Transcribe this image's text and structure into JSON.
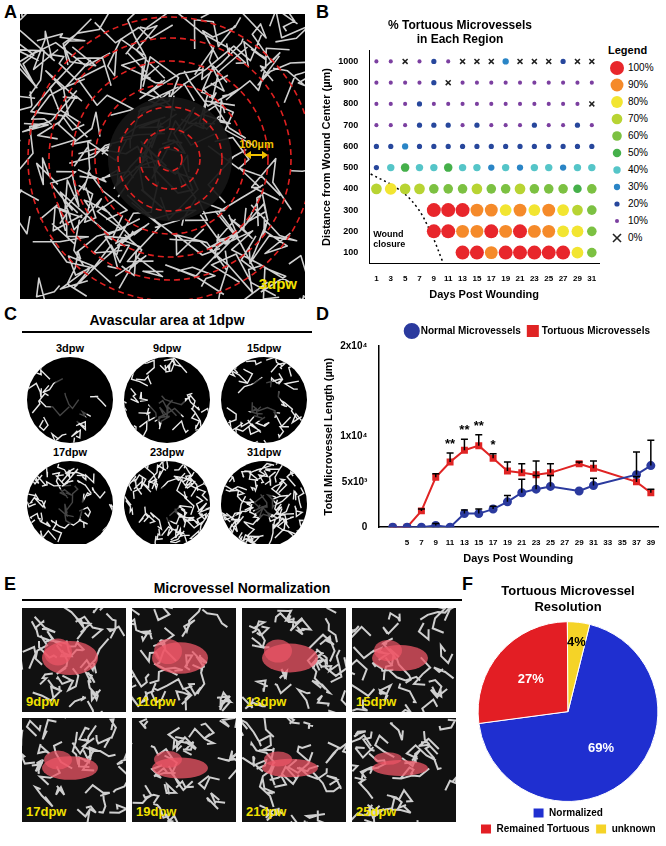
{
  "chart_data": [
    {
      "panel": "B",
      "type": "bubble",
      "title": [
        "% Tortuous Microvessels",
        "in Each Region"
      ],
      "x_label": "Days Post Wounding",
      "y_label": "Distance from Wound Center (µm)",
      "x": [
        1,
        3,
        5,
        7,
        9,
        11,
        13,
        15,
        17,
        19,
        21,
        23,
        25,
        27,
        29,
        31
      ],
      "y": [
        100,
        200,
        300,
        400,
        500,
        600,
        700,
        800,
        900,
        1000
      ],
      "cells": [
        [
          null,
          null,
          null,
          null,
          null,
          null,
          100,
          100,
          90,
          100,
          100,
          100,
          100,
          100,
          80,
          60
        ],
        [
          null,
          null,
          null,
          null,
          100,
          100,
          90,
          90,
          100,
          90,
          100,
          90,
          90,
          80,
          80,
          60
        ],
        [
          null,
          null,
          null,
          null,
          100,
          100,
          100,
          90,
          90,
          80,
          90,
          80,
          90,
          80,
          70,
          60
        ],
        [
          70,
          80,
          70,
          70,
          60,
          60,
          60,
          70,
          60,
          60,
          70,
          60,
          60,
          60,
          50,
          60
        ],
        [
          20,
          40,
          50,
          40,
          40,
          50,
          40,
          40,
          30,
          40,
          30,
          40,
          40,
          30,
          40,
          40
        ],
        [
          20,
          20,
          30,
          20,
          20,
          20,
          20,
          20,
          20,
          20,
          20,
          20,
          20,
          20,
          20,
          20
        ],
        [
          10,
          10,
          10,
          20,
          20,
          20,
          10,
          20,
          10,
          10,
          10,
          20,
          10,
          10,
          20,
          10
        ],
        [
          10,
          10,
          10,
          20,
          10,
          10,
          10,
          10,
          10,
          10,
          10,
          10,
          10,
          10,
          10,
          0
        ],
        [
          10,
          10,
          10,
          10,
          20,
          0,
          10,
          10,
          10,
          10,
          10,
          10,
          10,
          10,
          10,
          10
        ],
        [
          10,
          10,
          0,
          10,
          20,
          10,
          0,
          0,
          0,
          30,
          0,
          0,
          0,
          20,
          0,
          0
        ]
      ],
      "xlim": [
        0,
        32
      ],
      "ylim": [
        50,
        1050
      ],
      "xticks": [
        1,
        3,
        5,
        7,
        9,
        11,
        13,
        15,
        17,
        19,
        21,
        23,
        25,
        27,
        29,
        31
      ],
      "yticks": [
        100,
        200,
        300,
        400,
        500,
        600,
        700,
        800,
        900,
        1000
      ],
      "grid": false,
      "legend": "right",
      "legend_title": "Legend",
      "scale": [
        {
          "value": 100,
          "label": "100%",
          "color": "#e8262b"
        },
        {
          "value": 90,
          "label": "90%",
          "color": "#f58a2a"
        },
        {
          "value": 80,
          "label": "80%",
          "color": "#f2e531"
        },
        {
          "value": 70,
          "label": "70%",
          "color": "#b8d433"
        },
        {
          "value": 60,
          "label": "60%",
          "color": "#7cc142"
        },
        {
          "value": 50,
          "label": "50%",
          "color": "#45b04a"
        },
        {
          "value": 40,
          "label": "40%",
          "color": "#55c5c8"
        },
        {
          "value": 30,
          "label": "30%",
          "color": "#2a85c6"
        },
        {
          "value": 20,
          "label": "20%",
          "color": "#27479c"
        },
        {
          "value": 10,
          "label": "10%",
          "color": "#7b3fa0"
        },
        {
          "value": 0,
          "label": "0%",
          "color": "#222222",
          "marker": "x"
        }
      ],
      "annotation": {
        "text": "Wound closure",
        "x": [
          0.2,
          4,
          6.5,
          8.5,
          10.2
        ],
        "y": [
          470,
          400,
          320,
          200,
          60
        ],
        "line_style": "dotted"
      }
    },
    {
      "panel": "D",
      "type": "line",
      "x_label": "Days Post Wounding",
      "y_label": "Total Microvessel Length (µm)",
      "x": [
        3,
        5,
        7,
        9,
        11,
        13,
        15,
        17,
        19,
        21,
        23,
        25,
        29,
        31,
        37,
        39
      ],
      "series": [
        {
          "name": "Normal Microvessels",
          "color": "#2b3a9e",
          "marker": "circle",
          "values": [
            0,
            0,
            0,
            200,
            0,
            1500,
            1500,
            2000,
            2800,
            3800,
            4200,
            4500,
            4000,
            4600,
            5800,
            6800
          ],
          "errors": [
            0,
            0,
            0,
            200,
            0,
            400,
            500,
            300,
            700,
            1500,
            1500,
            1200,
            0,
            800,
            2500,
            2800
          ]
        },
        {
          "name": "Tortuous Microvessels",
          "color": "#e02424",
          "marker": "square",
          "values": [
            0,
            0,
            1800,
            5500,
            7200,
            8500,
            9000,
            7600,
            6200,
            6000,
            5800,
            6000,
            7000,
            6500,
            5000,
            3800
          ],
          "errors": [
            0,
            0,
            200,
            400,
            1000,
            1200,
            1200,
            500,
            1000,
            1000,
            1500,
            1000,
            200,
            800,
            600,
            400
          ]
        }
      ],
      "xlim": [
        1,
        40
      ],
      "ylim": [
        0,
        20000
      ],
      "xticks": [
        5,
        7,
        9,
        11,
        13,
        15,
        17,
        19,
        21,
        23,
        25,
        27,
        29,
        31,
        33,
        35,
        37,
        39
      ],
      "yticks": [
        0,
        {
          "value": 5000,
          "label": "5x10³"
        },
        {
          "value": 10000,
          "label": "1x10⁴"
        },
        {
          "value": 20000,
          "label": "2x10⁴"
        }
      ],
      "grid": false,
      "legend": "top right",
      "annotations": [
        {
          "x": 11,
          "text": "**"
        },
        {
          "x": 13,
          "text": "**"
        },
        {
          "x": 15,
          "text": "**"
        },
        {
          "x": 17,
          "text": "*"
        }
      ]
    },
    {
      "panel": "F",
      "type": "pie",
      "title": [
        "Tortuous Microvessel",
        "Resolution"
      ],
      "categories": [
        "Normalized",
        "Remained Tortuous",
        "unknown"
      ],
      "values": [
        69,
        27,
        4
      ],
      "value_labels": [
        "69%",
        "27%",
        "4%"
      ],
      "colors": [
        "#1f2fd0",
        "#e31e24",
        "#f5d327"
      ],
      "data_labels": true,
      "legend": "bottom"
    }
  ],
  "images": [
    {
      "panel": "A",
      "scale_bar": "100µm",
      "label": "3dpw"
    },
    {
      "panel": "C",
      "title": "Avascular area at 1dpw",
      "labels": [
        "3dpw",
        "9dpw",
        "15dpw",
        "17dpw",
        "23dpw",
        "31dpw"
      ]
    },
    {
      "panel": "E",
      "title": "Microvessel Normalization",
      "labels": [
        "9dpw",
        "11dpw",
        "13dpw",
        "15dpw",
        "17dpw",
        "19dpw",
        "21dpw",
        "25dpw"
      ]
    }
  ]
}
